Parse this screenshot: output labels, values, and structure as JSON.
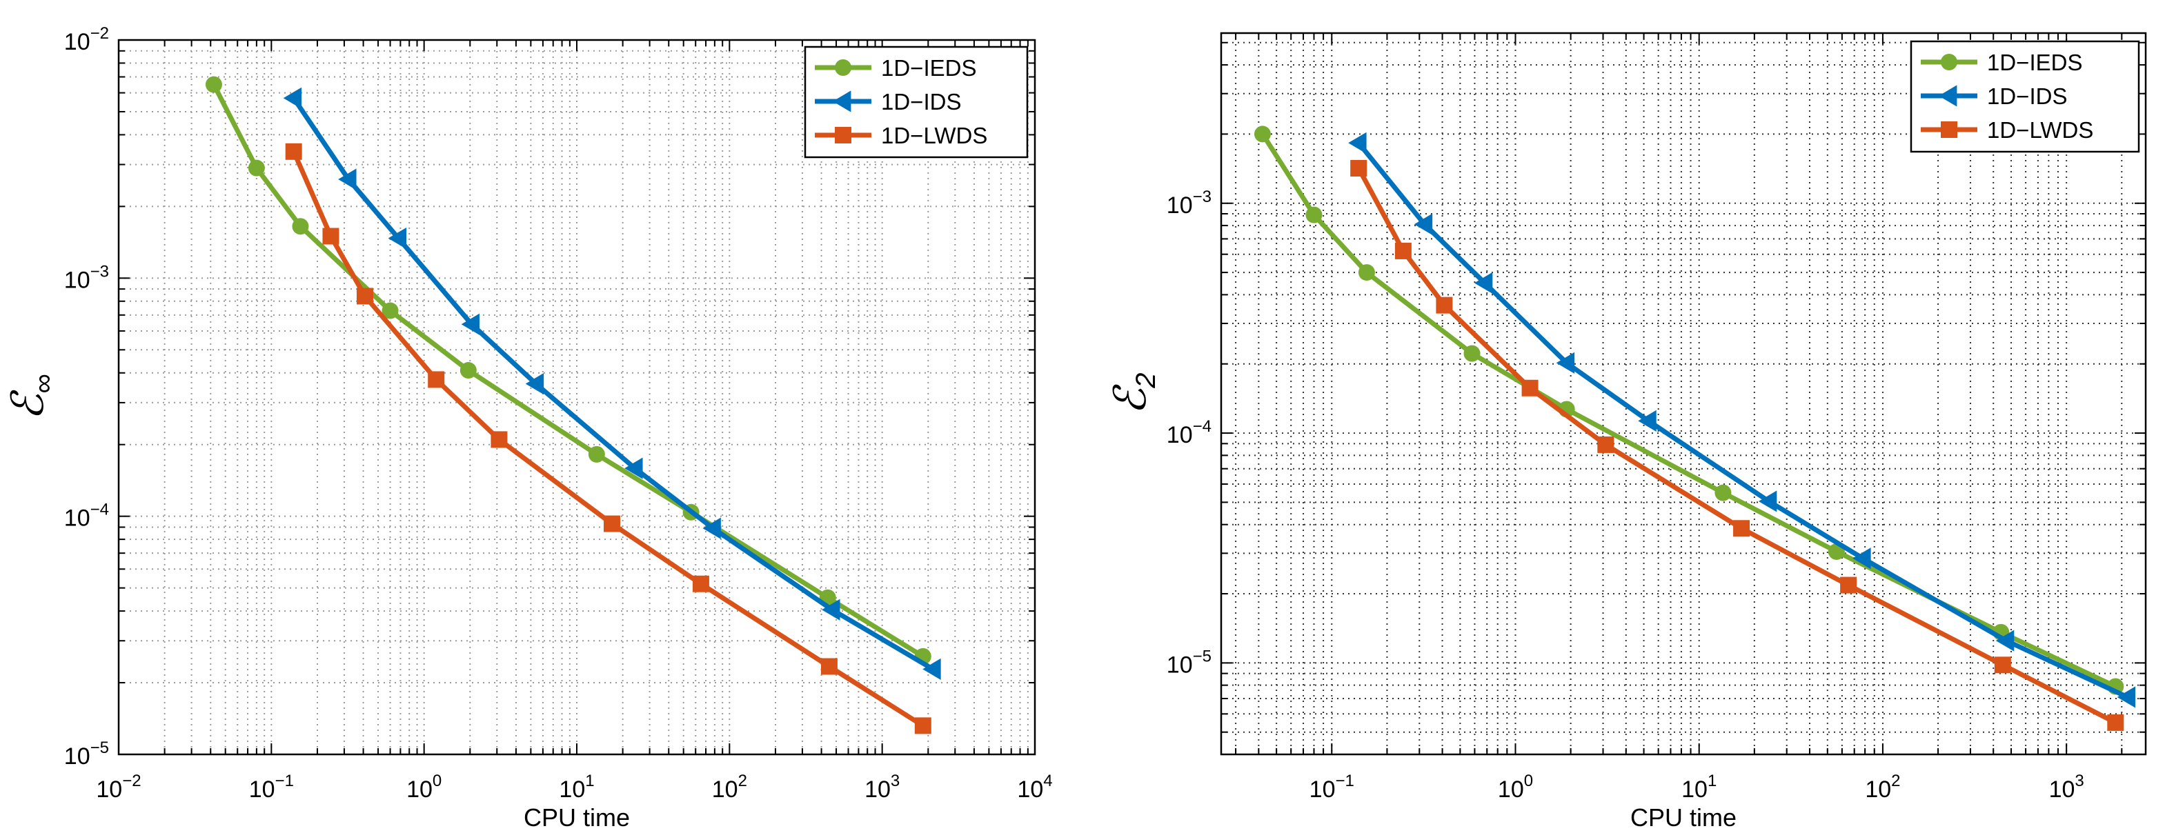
{
  "chart_data": [
    {
      "type": "line",
      "scale": "log-log",
      "xlabel": "CPU time",
      "ylabel": {
        "base": "ℰ",
        "sub": "∞"
      },
      "xlim": [
        0.01,
        10000
      ],
      "ylim": [
        1e-05,
        0.01
      ],
      "grid": true,
      "legend_position": "top-right",
      "x_ticks": [
        {
          "value": 0.01,
          "base": "10",
          "exp": "−2"
        },
        {
          "value": 0.1,
          "base": "10",
          "exp": "−1"
        },
        {
          "value": 1,
          "base": "10",
          "exp": "0"
        },
        {
          "value": 10,
          "base": "10",
          "exp": "1"
        },
        {
          "value": 100,
          "base": "10",
          "exp": "2"
        },
        {
          "value": 1000,
          "base": "10",
          "exp": "3"
        },
        {
          "value": 10000,
          "base": "10",
          "exp": "4"
        }
      ],
      "y_ticks": [
        {
          "value": 1e-05,
          "base": "10",
          "exp": "−5"
        },
        {
          "value": 0.0001,
          "base": "10",
          "exp": "−4"
        },
        {
          "value": 0.001,
          "base": "10",
          "exp": "−3"
        },
        {
          "value": 0.01,
          "base": "10",
          "exp": "−2"
        }
      ],
      "series": [
        {
          "name": "1D−IEDS",
          "color": "#77ac30",
          "marker": "circle",
          "x": [
            0.042,
            0.08,
            0.155,
            0.6,
            1.95,
            13.5,
            56,
            440,
            1850
          ],
          "y": [
            0.0065,
            0.0029,
            0.00165,
            0.00073,
            0.00041,
            0.000182,
            0.000104,
            4.55e-05,
            2.58e-05
          ]
        },
        {
          "name": "1D−IDS",
          "color": "#0072bd",
          "marker": "triangle-left",
          "x": [
            0.14,
            0.32,
            0.68,
            2.05,
            5.4,
            24,
            78,
            470,
            2150
          ],
          "y": [
            0.0057,
            0.0026,
            0.00147,
            0.00064,
            0.00036,
            0.000159,
            8.9e-05,
            4.05e-05,
            2.28e-05
          ]
        },
        {
          "name": "1D−LWDS",
          "color": "#d95319",
          "marker": "square",
          "x": [
            0.14,
            0.245,
            0.41,
            1.2,
            3.1,
            17,
            65,
            450,
            1850
          ],
          "y": [
            0.0034,
            0.0015,
            0.00084,
            0.000375,
            0.00021,
            9.3e-05,
            5.2e-05,
            2.34e-05,
            1.32e-05
          ]
        }
      ]
    },
    {
      "type": "line",
      "scale": "log-log",
      "xlabel": "CPU time",
      "ylabel": {
        "base": "ℰ",
        "sub": "2"
      },
      "xlim": [
        0.025,
        2700
      ],
      "ylim": [
        4e-06,
        0.0055
      ],
      "grid": true,
      "legend_position": "top-right",
      "x_ticks": [
        {
          "value": 0.1,
          "base": "10",
          "exp": "−1"
        },
        {
          "value": 1,
          "base": "10",
          "exp": "0"
        },
        {
          "value": 10,
          "base": "10",
          "exp": "1"
        },
        {
          "value": 100,
          "base": "10",
          "exp": "2"
        },
        {
          "value": 1000,
          "base": "10",
          "exp": "3"
        }
      ],
      "y_ticks": [
        {
          "value": 1e-05,
          "base": "10",
          "exp": "−5"
        },
        {
          "value": 0.0001,
          "base": "10",
          "exp": "−4"
        },
        {
          "value": 0.001,
          "base": "10",
          "exp": "−3"
        }
      ],
      "series": [
        {
          "name": "1D−IEDS",
          "color": "#77ac30",
          "marker": "circle",
          "x": [
            0.042,
            0.08,
            0.155,
            0.58,
            1.9,
            13.5,
            56,
            440,
            1850
          ],
          "y": [
            0.002,
            0.00089,
            0.0005,
            0.000222,
            0.000127,
            5.5e-05,
            3.05e-05,
            1.36e-05,
            7.9e-06
          ]
        },
        {
          "name": "1D−IDS",
          "color": "#0072bd",
          "marker": "triangle-left",
          "x": [
            0.14,
            0.32,
            0.68,
            1.9,
            5.3,
            24,
            78,
            470,
            2150
          ],
          "y": [
            0.00183,
            0.00081,
            0.00045,
            0.000202,
            0.000113,
            5.05e-05,
            2.85e-05,
            1.25e-05,
            7.1e-06
          ]
        },
        {
          "name": "1D−LWDS",
          "color": "#d95319",
          "marker": "square",
          "x": [
            0.14,
            0.245,
            0.41,
            1.2,
            3.1,
            17,
            65,
            450,
            1850
          ],
          "y": [
            0.00142,
            0.00062,
            0.00036,
            0.000157,
            8.9e-05,
            3.85e-05,
            2.18e-05,
            9.8e-06,
            5.5e-06
          ]
        }
      ]
    }
  ]
}
